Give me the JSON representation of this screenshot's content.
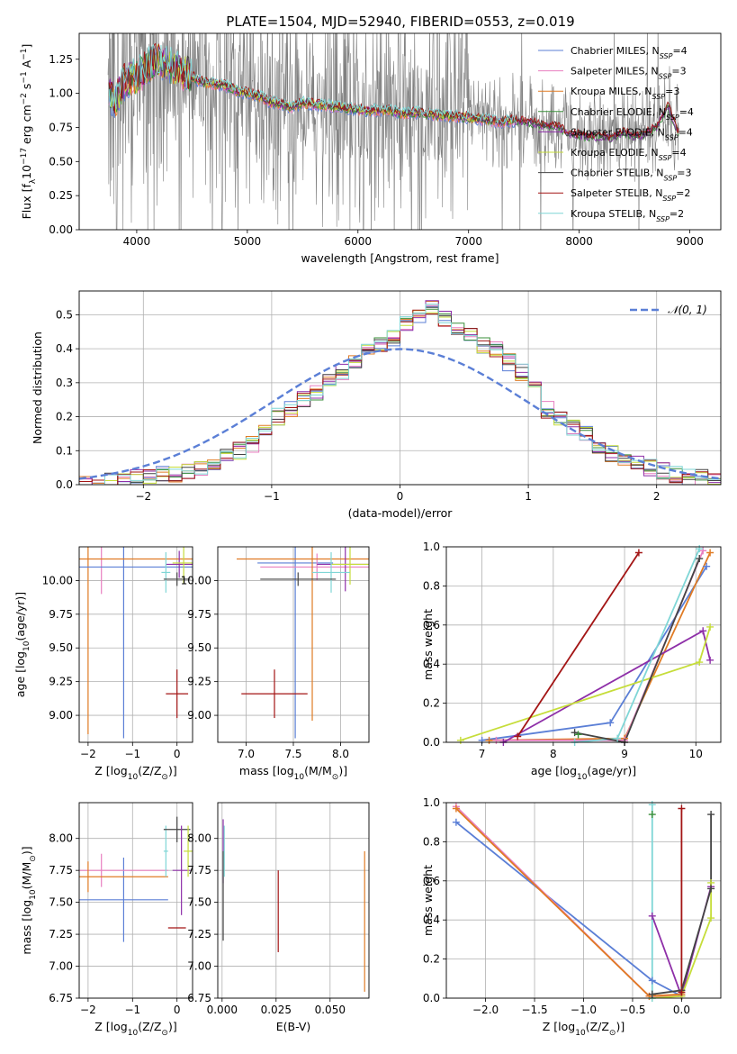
{
  "title": "PLATE=1504, MJD=52940, FIBERID=0553, z=0.019",
  "colors": {
    "chabrier_miles": "#5b7fd6",
    "salpeter_miles": "#e87fc0",
    "kroupa_miles": "#e07b24",
    "chabrier_elodie": "#3a8f3a",
    "salpeter_elodie": "#8e2fa8",
    "kroupa_elodie": "#c6dd3a",
    "chabrier_stelib": "#444444",
    "salpeter_stelib": "#a31515",
    "kroupa_stelib": "#7fd6d6",
    "data": "#808080",
    "grid": "#b0b0b0"
  },
  "chart_data": [
    {
      "id": "spectrum",
      "type": "line",
      "xlabel": "wavelength [Angstrom, rest frame]",
      "ylabel": "Flux [f",
      "ylabel_sub": "λ",
      "ylabel_rest": "10",
      "ylabel_exp": "−17",
      "ylabel_units": " erg cm",
      "ylabel_units_exp1": "−2",
      "ylabel_units2": " s",
      "ylabel_units_exp2": "−1",
      "ylabel_units3": " A",
      "ylabel_units_exp3": "−1",
      "ylabel_close": "]",
      "xlim": [
        3480,
        9280
      ],
      "ylim": [
        0.0,
        1.44
      ],
      "xticks": [
        "4000",
        "5000",
        "6000",
        "7000",
        "8000",
        "9000"
      ],
      "xtick_values": [
        4000,
        5000,
        6000,
        7000,
        8000,
        9000
      ],
      "yticks": [
        "0.00",
        "0.25",
        "0.50",
        "0.75",
        "1.00",
        "1.25"
      ],
      "ytick_values": [
        0.0,
        0.25,
        0.5,
        0.75,
        1.0,
        1.25
      ],
      "grid": false,
      "legend_position": "top-right",
      "legend": [
        {
          "label": "Chabrier MILES, N",
          "sub": "SSP",
          "tail": "=4",
          "color": "#5b7fd6"
        },
        {
          "label": "Salpeter MILES, N",
          "sub": "SSP",
          "tail": "=3",
          "color": "#e87fc0"
        },
        {
          "label": "Kroupa MILES, N",
          "sub": "SSP",
          "tail": "=3",
          "color": "#e07b24"
        },
        {
          "label": "Chabrier ELODIE, N",
          "sub": "SSP",
          "tail": "=4",
          "color": "#3a8f3a"
        },
        {
          "label": "Salpeter ELODIE, N",
          "sub": "SSP",
          "tail": "=4",
          "color": "#8e2fa8"
        },
        {
          "label": "Kroupa ELODIE, N",
          "sub": "SSP",
          "tail": "=4",
          "color": "#c6dd3a"
        },
        {
          "label": "Chabrier STELIB, N",
          "sub": "SSP",
          "tail": "=3",
          "color": "#444444"
        },
        {
          "label": "Salpeter STELIB, N",
          "sub": "SSP",
          "tail": "=2",
          "color": "#a31515"
        },
        {
          "label": "Kroupa STELIB, N",
          "sub": "SSP",
          "tail": "=2",
          "color": "#7fd6d6"
        }
      ],
      "model_continuum": {
        "x": [
          3750,
          3800,
          3900,
          4000,
          4100,
          4200,
          4300,
          4400,
          4500,
          4600,
          4700,
          4800,
          4900,
          5000,
          5100,
          5200,
          5300,
          5400,
          5500,
          5600,
          5700,
          5800,
          5900,
          6000,
          6100,
          6200,
          6300,
          6400,
          6500,
          6600,
          6700,
          6800,
          6900,
          7000,
          7100,
          7200,
          7300,
          7400,
          7500,
          7600,
          7700,
          7800,
          7900,
          8000,
          8100,
          8200,
          8300,
          8400,
          8500,
          8600,
          8700,
          8800,
          8900
        ],
        "y": [
          1.0,
          0.95,
          1.1,
          1.12,
          1.2,
          1.25,
          1.2,
          1.17,
          1.12,
          1.08,
          1.07,
          1.06,
          1.02,
          1.0,
          0.98,
          0.94,
          0.92,
          0.9,
          0.93,
          0.92,
          0.91,
          0.9,
          0.89,
          0.88,
          0.87,
          0.88,
          0.87,
          0.85,
          0.86,
          0.85,
          0.84,
          0.84,
          0.83,
          0.82,
          0.81,
          0.8,
          0.79,
          0.8,
          0.79,
          0.78,
          0.76,
          0.76,
          0.7,
          0.69,
          0.68,
          0.68,
          0.67,
          0.72,
          0.68,
          0.7,
          0.75,
          0.9,
          0.7
        ]
      }
    },
    {
      "id": "residuals",
      "type": "line",
      "xlabel": "(data-model)/error",
      "ylabel": "Normed distribution",
      "xlim": [
        -2.5,
        2.5
      ],
      "ylim": [
        0.0,
        0.57
      ],
      "xticks": [
        "−2",
        "−1",
        "0",
        "1",
        "2"
      ],
      "xtick_values": [
        -2,
        -1,
        0,
        1,
        2
      ],
      "yticks": [
        "0.0",
        "0.1",
        "0.2",
        "0.3",
        "0.4",
        "0.5"
      ],
      "ytick_values": [
        0.0,
        0.1,
        0.2,
        0.3,
        0.4,
        0.5
      ],
      "grid": true,
      "legend_position": "top-right",
      "legend": [
        {
          "label": "𝒩(0, 1)",
          "color": "#5b7fd6",
          "dashed": true
        }
      ],
      "bin_width": 0.1,
      "bin_start": -2.5,
      "histogram_reference": [
        0.0,
        0.0,
        0.01,
        0.01,
        0.02,
        0.02,
        0.03,
        0.03,
        0.04,
        0.05,
        0.06,
        0.08,
        0.1,
        0.12,
        0.17,
        0.2,
        0.22,
        0.25,
        0.27,
        0.3,
        0.33,
        0.36,
        0.39,
        0.41,
        0.43,
        0.47,
        0.5,
        0.52,
        0.49,
        0.46,
        0.44,
        0.41,
        0.4,
        0.36,
        0.33,
        0.28,
        0.22,
        0.2,
        0.17,
        0.15,
        0.11,
        0.09,
        0.08,
        0.06,
        0.05,
        0.04,
        0.03,
        0.02,
        0.02,
        0.01
      ]
    },
    {
      "id": "age_vs_Z",
      "type": "scatter",
      "xlabel": "Z [log",
      "xlabel_sub": "10",
      "xlabel_rest": "(Z/Z",
      "xlabel_sun": "⊙",
      "xlabel_close": ")]",
      "ylabel": "age  [log",
      "ylabel_sub": "10",
      "ylabel_rest": "(age/yr)]",
      "xlim": [
        -2.2,
        0.35
      ],
      "ylim": [
        8.8,
        10.25
      ],
      "xticks": [
        "−2",
        "−1",
        "0"
      ],
      "xtick_values": [
        -2,
        -1,
        0
      ],
      "yticks": [
        "9.00",
        "9.25",
        "9.50",
        "9.75",
        "10.00"
      ],
      "ytick_values": [
        9.0,
        9.25,
        9.5,
        9.75,
        10.0
      ],
      "grid": true,
      "points": [
        {
          "x": -1.2,
          "y": 10.13,
          "xerr": 0.0,
          "yerr": 1.3,
          "color": "#5b7fd6"
        },
        {
          "x": -1.7,
          "y": 10.1,
          "xerr": 0.0,
          "yerr": 0.2,
          "color": "#e87fc0"
        },
        {
          "x": -2.0,
          "y": 10.16,
          "xerr": 0.0,
          "yerr": 1.3,
          "color": "#e07b24"
        },
        {
          "x": -0.3,
          "y": 10.16,
          "xerr": 2.0,
          "yerr": 0.0,
          "color": "#e07b24"
        },
        {
          "x": -0.2,
          "y": 10.1,
          "xerr": 2.0,
          "yerr": 0.0,
          "color": "#5b7fd6"
        },
        {
          "x": 0.05,
          "y": 10.12,
          "xerr": 0.3,
          "yerr": 0.1,
          "color": "#8e2fa8"
        },
        {
          "x": 0.15,
          "y": 10.13,
          "xerr": 0.25,
          "yerr": 0.15,
          "color": "#c6dd3a"
        },
        {
          "x": -0.25,
          "y": 10.06,
          "xerr": 0.1,
          "yerr": 0.15,
          "color": "#7fd6d6"
        },
        {
          "x": 0.0,
          "y": 10.01,
          "xerr": 0.3,
          "yerr": 0.05,
          "color": "#444444"
        },
        {
          "x": 0.0,
          "y": 9.16,
          "xerr": 0.25,
          "yerr": 0.18,
          "color": "#a31515"
        }
      ]
    },
    {
      "id": "age_vs_mass",
      "type": "scatter",
      "xlabel": "mass [log",
      "xlabel_sub": "10",
      "xlabel_rest": "(M/M",
      "xlabel_sun": "⊙",
      "xlabel_close": ")]",
      "xlim": [
        6.7,
        8.3
      ],
      "ylim": [
        8.8,
        10.25
      ],
      "xticks": [
        "7.0",
        "7.5",
        "8.0"
      ],
      "xtick_values": [
        7.0,
        7.5,
        8.0
      ],
      "yticks": [
        "9.00",
        "9.25",
        "9.50",
        "9.75",
        "10.00"
      ],
      "ytick_values": [
        9.0,
        9.25,
        9.5,
        9.75,
        10.0
      ],
      "grid": true,
      "points": [
        {
          "x": 7.52,
          "y": 10.13,
          "xerr": 0.4,
          "yerr": 1.3,
          "color": "#5b7fd6"
        },
        {
          "x": 7.75,
          "y": 10.1,
          "xerr": 0.6,
          "yerr": 0.1,
          "color": "#e87fc0"
        },
        {
          "x": 7.7,
          "y": 10.16,
          "xerr": 0.8,
          "yerr": 1.2,
          "color": "#e07b24"
        },
        {
          "x": 8.05,
          "y": 10.12,
          "xerr": 0.3,
          "yerr": 0.2,
          "color": "#8e2fa8"
        },
        {
          "x": 8.1,
          "y": 10.12,
          "xerr": 0.2,
          "yerr": 0.15,
          "color": "#c6dd3a"
        },
        {
          "x": 7.9,
          "y": 10.06,
          "xerr": 0.2,
          "yerr": 0.15,
          "color": "#7fd6d6"
        },
        {
          "x": 7.55,
          "y": 10.01,
          "xerr": 0.4,
          "yerr": 0.05,
          "color": "#444444"
        },
        {
          "x": 7.3,
          "y": 9.16,
          "xerr": 0.35,
          "yerr": 0.18,
          "color": "#a31515"
        }
      ]
    },
    {
      "id": "massweight_vs_age",
      "type": "line",
      "xlabel": "age  [log",
      "xlabel_sub": "10",
      "xlabel_rest": "(age/yr)]",
      "ylabel": "mass weight",
      "xlim": [
        6.5,
        10.35
      ],
      "ylim": [
        0.0,
        1.0
      ],
      "xticks": [
        "7",
        "8",
        "9",
        "10"
      ],
      "xtick_values": [
        7,
        8,
        9,
        10
      ],
      "yticks": [
        "0.0",
        "0.2",
        "0.4",
        "0.6",
        "0.8",
        "1.0"
      ],
      "ytick_values": [
        0.0,
        0.2,
        0.4,
        0.6,
        0.8,
        1.0
      ],
      "grid": true,
      "series": [
        {
          "color": "#5b7fd6",
          "x": [
            7.0,
            8.8,
            10.15
          ],
          "y": [
            0.01,
            0.1,
            0.9
          ]
        },
        {
          "color": "#e07b24",
          "x": [
            7.1,
            9.0,
            10.2
          ],
          "y": [
            0.01,
            0.02,
            0.97
          ]
        },
        {
          "color": "#e87fc0",
          "x": [
            7.2,
            9.0,
            10.1
          ],
          "y": [
            0.01,
            0.01,
            0.98
          ]
        },
        {
          "color": "#8e2fa8",
          "x": [
            7.3,
            10.1,
            10.2
          ],
          "y": [
            0.0,
            0.57,
            0.42
          ]
        },
        {
          "color": "#c6dd3a",
          "x": [
            6.7,
            10.05,
            10.2
          ],
          "y": [
            0.01,
            0.41,
            0.59
          ]
        },
        {
          "color": "#7fd6d6",
          "x": [
            8.3,
            8.9,
            10.05
          ],
          "y": [
            0.0,
            0.02,
            0.99
          ]
        },
        {
          "color": "#444444",
          "x": [
            8.3,
            9.0,
            10.05
          ],
          "y": [
            0.05,
            0.0,
            0.94
          ]
        },
        {
          "color": "#a31515",
          "x": [
            7.5,
            9.2
          ],
          "y": [
            0.03,
            0.97
          ]
        },
        {
          "color": "#3a8f3a",
          "x": [
            8.35
          ],
          "y": [
            0.04
          ]
        }
      ]
    },
    {
      "id": "mass_vs_Z",
      "type": "scatter",
      "xlabel": "Z [log",
      "xlabel_sub": "10",
      "xlabel_rest": "(Z/Z",
      "xlabel_sun": "⊙",
      "xlabel_close": ")]",
      "ylabel": "mass [log",
      "ylabel_sub": "10",
      "ylabel_rest": "(M/M",
      "ylabel_sun": "⊙",
      "ylabel_close": ")]",
      "xlim": [
        -2.2,
        0.35
      ],
      "ylim": [
        6.75,
        8.28
      ],
      "xticks": [
        "−2",
        "−1",
        "0"
      ],
      "xtick_values": [
        -2,
        -1,
        0
      ],
      "yticks": [
        "6.75",
        "7.00",
        "7.25",
        "7.50",
        "7.75",
        "8.00"
      ],
      "ytick_values": [
        6.75,
        7.0,
        7.25,
        7.5,
        7.75,
        8.0
      ],
      "grid": true,
      "points": [
        {
          "x": -1.2,
          "y": 7.52,
          "xerr": 1.0,
          "yerr": 0.33,
          "color": "#5b7fd6"
        },
        {
          "x": -1.7,
          "y": 7.75,
          "xerr": 1.5,
          "yerr": 0.13,
          "color": "#e87fc0"
        },
        {
          "x": -2.0,
          "y": 7.7,
          "xerr": 1.8,
          "yerr": 0.12,
          "color": "#e07b24"
        },
        {
          "x": -0.25,
          "y": 7.9,
          "xerr": 0.05,
          "yerr": 0.2,
          "color": "#7fd6d6"
        },
        {
          "x": 0.0,
          "y": 8.07,
          "xerr": 0.3,
          "yerr": 0.1,
          "color": "#444444"
        },
        {
          "x": 0.1,
          "y": 7.75,
          "xerr": 0.2,
          "yerr": 0.35,
          "color": "#8e2fa8"
        },
        {
          "x": 0.25,
          "y": 7.9,
          "xerr": 0.1,
          "yerr": 0.2,
          "color": "#c6dd3a"
        },
        {
          "x": 0.0,
          "y": 7.3,
          "xerr": 0.2,
          "yerr": 0.0,
          "color": "#a31515"
        }
      ]
    },
    {
      "id": "mass_vs_ebv",
      "type": "scatter",
      "xlabel": "E(B-V)",
      "xlim": [
        -0.002,
        0.068
      ],
      "ylim": [
        6.75,
        8.28
      ],
      "xticks": [
        "0.000",
        "0.025",
        "0.050"
      ],
      "xtick_values": [
        0.0,
        0.025,
        0.05
      ],
      "yticks": [
        "6.75",
        "7.00",
        "7.25",
        "7.50",
        "7.75",
        "8.00"
      ],
      "ytick_values": [
        6.75,
        7.0,
        7.25,
        7.5,
        7.75,
        8.0
      ],
      "grid": true,
      "points": [
        {
          "x": 0.0005,
          "y": 7.9,
          "xerr": 0.0,
          "yerr": 0.25,
          "color": "#8e2fa8"
        },
        {
          "x": 0.0005,
          "y": 7.55,
          "xerr": 0.0,
          "yerr": 0.35,
          "color": "#444444"
        },
        {
          "x": 0.001,
          "y": 7.9,
          "xerr": 0.0,
          "yerr": 0.2,
          "color": "#7fd6d6"
        },
        {
          "x": 0.026,
          "y": 7.43,
          "xerr": 0.0,
          "yerr": 0.32,
          "color": "#a31515"
        },
        {
          "x": 0.066,
          "y": 7.35,
          "xerr": 0.0,
          "yerr": 0.55,
          "color": "#e07b24"
        }
      ]
    },
    {
      "id": "massweight_vs_Z",
      "type": "line",
      "xlabel": "Z [log",
      "xlabel_sub": "10",
      "xlabel_rest": "(Z/Z",
      "xlabel_sun": "⊙",
      "xlabel_close": ")]",
      "ylabel": "mass weight",
      "xlim": [
        -2.4,
        0.4
      ],
      "ylim": [
        0.0,
        1.0
      ],
      "xticks": [
        "−2.0",
        "−1.5",
        "−1.0",
        "−0.5",
        "0.0"
      ],
      "xtick_values": [
        -2.0,
        -1.5,
        -1.0,
        -0.5,
        0.0
      ],
      "yticks": [
        "0.0",
        "0.2",
        "0.4",
        "0.6",
        "0.8",
        "1.0"
      ],
      "ytick_values": [
        0.0,
        0.2,
        0.4,
        0.6,
        0.8,
        1.0
      ],
      "grid": true,
      "series": [
        {
          "color": "#5b7fd6",
          "x": [
            -2.3,
            -0.3,
            0.0
          ],
          "y": [
            0.9,
            0.09,
            0.01
          ]
        },
        {
          "color": "#e87fc0",
          "x": [
            -2.3,
            -0.33,
            0.0
          ],
          "y": [
            0.98,
            0.01,
            0.01
          ]
        },
        {
          "color": "#e07b24",
          "x": [
            -2.3,
            -0.33,
            0.0
          ],
          "y": [
            0.97,
            0.01,
            0.02
          ]
        },
        {
          "color": "#8e2fa8",
          "x": [
            -0.3,
            0.0,
            0.3
          ],
          "y": [
            0.42,
            0.01,
            0.57
          ]
        },
        {
          "color": "#c6dd3a",
          "x": [
            -0.3,
            0.0,
            0.3,
            0.3
          ],
          "y": [
            0.0,
            0.01,
            0.41,
            0.59
          ]
        },
        {
          "color": "#7fd6d6",
          "x": [
            -0.3,
            -0.3
          ],
          "y": [
            0.0,
            0.99
          ]
        },
        {
          "color": "#444444",
          "x": [
            -0.3,
            0.0,
            0.3,
            0.3
          ],
          "y": [
            0.02,
            0.04,
            0.56,
            0.94
          ]
        },
        {
          "color": "#a31515",
          "x": [
            0.0,
            0.0
          ],
          "y": [
            0.03,
            0.97
          ]
        },
        {
          "color": "#3a8f3a",
          "x": [
            -0.3
          ],
          "y": [
            0.94
          ]
        }
      ]
    }
  ]
}
